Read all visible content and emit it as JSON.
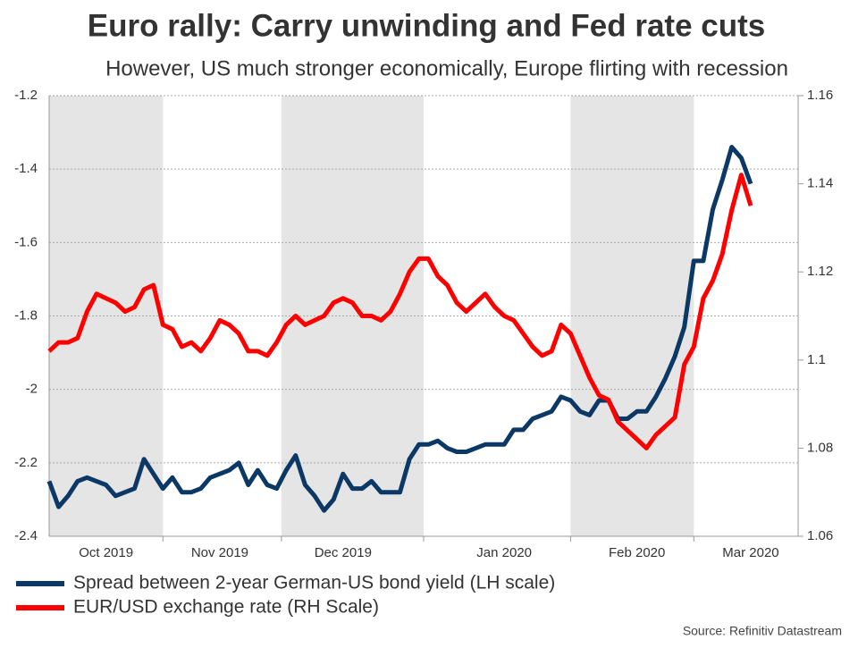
{
  "chart_data": {
    "type": "line",
    "title": "Euro rally: Carry unwinding and Fed rate cuts",
    "subtitle": "However, US much stronger economically, Europe flirting with recession",
    "source": "Source: Refinitiv Datastream",
    "categories": [
      null,
      null,
      null,
      null,
      null,
      null,
      "Oct 2019",
      null,
      null,
      null,
      null,
      null,
      null,
      null,
      null,
      null,
      null,
      null,
      "Nov 2019",
      null,
      null,
      null,
      null,
      null,
      null,
      null,
      null,
      null,
      null,
      null,
      null,
      "Dec 2019",
      null,
      null,
      null,
      null,
      null,
      null,
      null,
      null,
      null,
      null,
      null,
      null,
      null,
      null,
      null,
      null,
      "Jan 2020",
      null,
      null,
      null,
      null,
      null,
      null,
      null,
      null,
      null,
      null,
      null,
      null,
      null,
      "Feb 2020",
      null,
      null,
      null,
      null,
      null,
      null,
      null,
      null,
      null,
      null,
      null,
      "Mar 2020",
      null,
      null,
      null,
      null,
      null
    ],
    "ylim": [
      -2.4,
      -1.2
    ],
    "yticks": [
      -2.4,
      -2.2,
      -2.0,
      -1.8,
      -1.6,
      -1.4,
      -1.2
    ],
    "y2lim": [
      1.06,
      1.16
    ],
    "y2ticks": [
      1.06,
      1.08,
      1.1,
      1.12,
      1.14,
      1.16
    ],
    "grid": true,
    "shade_alternate_months": true,
    "series": [
      {
        "name": "Spread between 2-year German-US bond yield (LH scale)",
        "color": "#0c3866",
        "axis": "y",
        "values": [
          -2.25,
          -2.32,
          -2.29,
          -2.25,
          -2.24,
          -2.25,
          -2.26,
          -2.29,
          -2.28,
          -2.27,
          -2.19,
          -2.23,
          -2.27,
          -2.24,
          -2.28,
          -2.28,
          -2.27,
          -2.24,
          -2.23,
          -2.22,
          -2.2,
          -2.26,
          -2.22,
          -2.26,
          -2.27,
          -2.22,
          -2.18,
          -2.26,
          -2.29,
          -2.33,
          -2.3,
          -2.23,
          -2.27,
          -2.27,
          -2.25,
          -2.28,
          -2.28,
          -2.28,
          -2.19,
          -2.15,
          -2.15,
          -2.14,
          -2.16,
          -2.17,
          -2.17,
          -2.16,
          -2.15,
          -2.15,
          -2.15,
          -2.11,
          -2.11,
          -2.08,
          -2.07,
          -2.06,
          -2.02,
          -2.03,
          -2.06,
          -2.07,
          -2.03,
          -2.03,
          -2.08,
          -2.08,
          -2.06,
          -2.06,
          -2.02,
          -1.97,
          -1.91,
          -1.83,
          -1.65,
          -1.65,
          -1.51,
          -1.43,
          -1.34,
          -1.37,
          -1.44,
          null,
          null,
          null,
          null,
          null
        ]
      },
      {
        "name": "EUR/USD exchange rate (RH Scale)",
        "color": "#ff0000",
        "axis": "y2",
        "values": [
          1.102,
          1.104,
          1.104,
          1.105,
          1.111,
          1.115,
          1.114,
          1.113,
          1.111,
          1.112,
          1.116,
          1.117,
          1.108,
          1.107,
          1.103,
          1.104,
          1.102,
          1.105,
          1.109,
          1.108,
          1.106,
          1.102,
          1.102,
          1.101,
          1.104,
          1.108,
          1.11,
          1.108,
          1.109,
          1.11,
          1.113,
          1.114,
          1.113,
          1.11,
          1.11,
          1.109,
          1.111,
          1.115,
          1.12,
          1.123,
          1.123,
          1.119,
          1.117,
          1.113,
          1.111,
          1.113,
          1.115,
          1.112,
          1.11,
          1.109,
          1.106,
          1.103,
          1.101,
          1.102,
          1.108,
          1.106,
          1.101,
          1.096,
          1.092,
          1.091,
          1.086,
          1.084,
          1.082,
          1.08,
          1.083,
          1.085,
          1.087,
          1.099,
          1.103,
          1.114,
          1.118,
          1.124,
          1.134,
          1.142,
          1.135,
          null,
          null,
          null,
          null,
          null
        ]
      }
    ]
  }
}
